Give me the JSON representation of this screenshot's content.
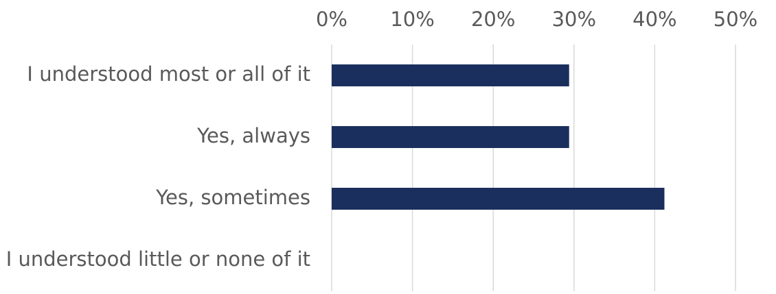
{
  "chart_data": {
    "type": "bar",
    "orientation": "horizontal",
    "categories": [
      "I understood most or all of it",
      "Yes, always",
      "Yes, sometimes",
      "I understood little or none of it"
    ],
    "values": [
      29.4,
      29.4,
      41.2,
      0
    ],
    "value_unit": "%",
    "xlim": [
      0,
      50
    ],
    "x_ticks": [
      "0%",
      "10%",
      "20%",
      "30%",
      "40%",
      "50%"
    ],
    "x_axis_position": "top",
    "grid": true,
    "title": "",
    "xlabel": "",
    "ylabel": "",
    "bar_color": "#1b2f5e",
    "gridline_color": "#d9d9d9",
    "text_color": "#595959"
  }
}
